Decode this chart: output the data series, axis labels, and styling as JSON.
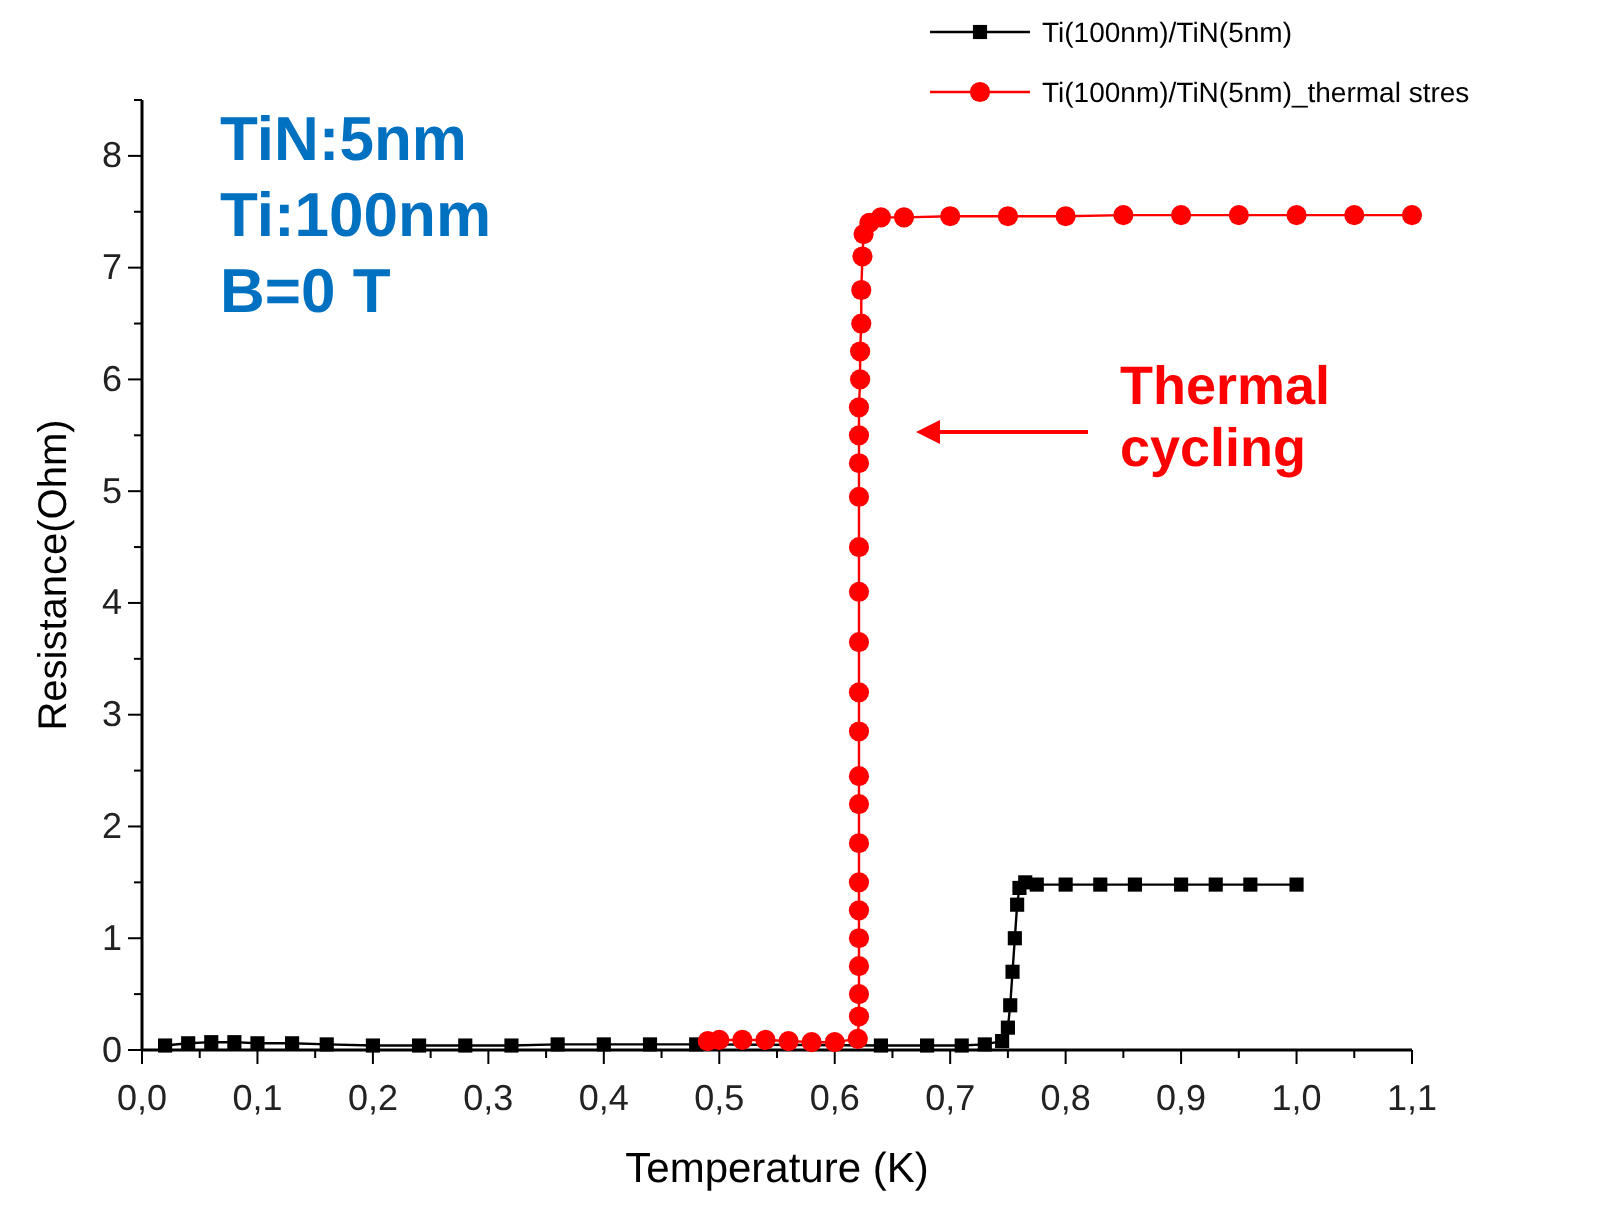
{
  "chart_data": {
    "type": "line",
    "xlabel": "Temperature (K)",
    "ylabel": "Resistance(Ohm)",
    "xlim": [
      0,
      1.1
    ],
    "xticks": [
      {
        "value": 0,
        "label": "0,0"
      },
      {
        "value": 0.1,
        "label": "0,1"
      },
      {
        "value": 0.2,
        "label": "0,2"
      },
      {
        "value": 0.3,
        "label": "0,3"
      },
      {
        "value": 0.4,
        "label": "0,4"
      },
      {
        "value": 0.5,
        "label": "0,5"
      },
      {
        "value": 0.6,
        "label": "0,6"
      },
      {
        "value": 0.7,
        "label": "0,7"
      },
      {
        "value": 0.8,
        "label": "0,8"
      },
      {
        "value": 0.9,
        "label": "0,9"
      },
      {
        "value": 1.0,
        "label": "1,0"
      },
      {
        "value": 1.1,
        "label": "1,1"
      }
    ],
    "ylim": [
      0,
      8.5
    ],
    "yticks": [
      0,
      1,
      2,
      3,
      4,
      5,
      6,
      7,
      8
    ],
    "grid": false,
    "legend": "top right",
    "line_style": "solid",
    "annotations": [
      "TiN:5nm",
      "Ti:100nm",
      "B=0 T",
      "Thermal cycling"
    ],
    "series": [
      {
        "name": "Ti(100nm)/TiN(5nm)",
        "color": "#000000",
        "marker": "square",
        "x": [
          0.02,
          0.04,
          0.06,
          0.08,
          0.1,
          0.13,
          0.16,
          0.2,
          0.24,
          0.28,
          0.32,
          0.36,
          0.4,
          0.44,
          0.48,
          0.52,
          0.56,
          0.6,
          0.64,
          0.68,
          0.71,
          0.73,
          0.745,
          0.75,
          0.752,
          0.754,
          0.756,
          0.758,
          0.76,
          0.765,
          0.775,
          0.8,
          0.83,
          0.86,
          0.9,
          0.93,
          0.96,
          1.0
        ],
        "values": [
          0.04,
          0.06,
          0.07,
          0.07,
          0.06,
          0.06,
          0.05,
          0.04,
          0.04,
          0.04,
          0.04,
          0.05,
          0.05,
          0.05,
          0.05,
          null,
          null,
          null,
          0.04,
          0.04,
          0.04,
          0.05,
          0.08,
          0.2,
          0.4,
          0.7,
          1.0,
          1.3,
          1.45,
          1.5,
          1.48,
          1.48,
          1.48,
          1.48,
          1.48,
          1.48,
          1.48,
          1.48
        ]
      },
      {
        "name": "Ti(100nm)/TiN(5nm)_thermal stres",
        "color": "#ff0000",
        "marker": "circle",
        "x": [
          0.49,
          0.5,
          0.52,
          0.54,
          0.56,
          0.58,
          0.6,
          0.615,
          0.62,
          0.621,
          0.621,
          0.621,
          0.621,
          0.621,
          0.621,
          0.621,
          0.621,
          0.621,
          0.621,
          0.621,
          0.621,
          0.621,
          0.621,
          0.621,
          0.621,
          0.621,
          0.621,
          0.622,
          0.622,
          0.623,
          0.623,
          0.624,
          0.625,
          0.63,
          0.64,
          0.66,
          0.7,
          0.75,
          0.8,
          0.85,
          0.9,
          0.95,
          1.0,
          1.05,
          1.1
        ],
        "values": [
          0.08,
          0.09,
          0.09,
          0.09,
          0.08,
          0.07,
          0.07,
          null,
          0.1,
          0.3,
          0.5,
          0.75,
          1.0,
          1.25,
          1.5,
          1.85,
          2.2,
          2.45,
          2.85,
          3.2,
          3.65,
          4.1,
          4.5,
          4.95,
          5.25,
          5.5,
          5.75,
          6.0,
          6.25,
          6.5,
          6.8,
          7.1,
          7.3,
          7.4,
          7.45,
          7.45,
          7.46,
          7.46,
          7.46,
          7.47,
          7.47,
          7.47,
          7.47,
          7.47,
          7.47
        ]
      }
    ]
  }
}
